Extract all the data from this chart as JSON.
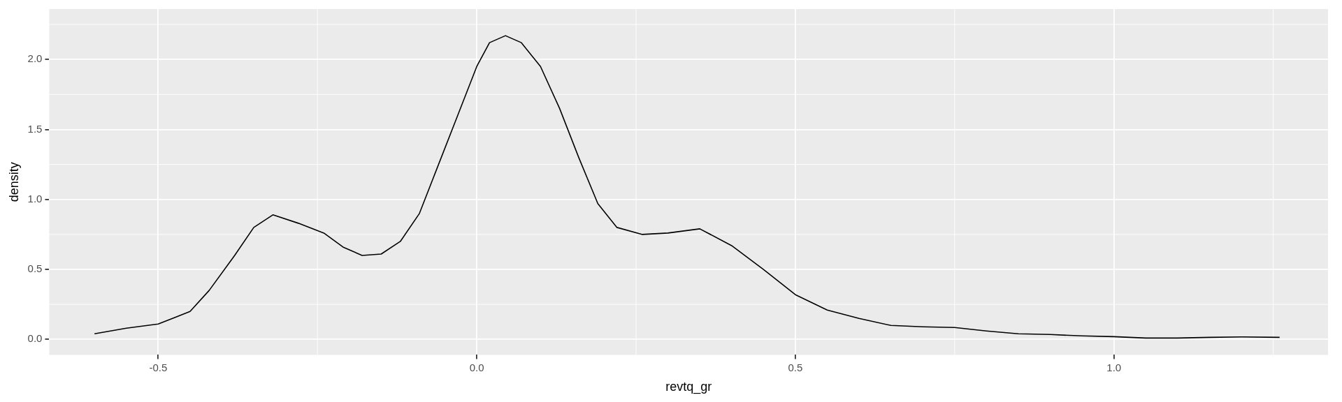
{
  "chart_data": {
    "type": "line",
    "xlabel": "revtq_gr",
    "ylabel": "density",
    "xlim": [
      -0.671,
      1.336
    ],
    "ylim": [
      -0.11,
      2.36
    ],
    "xticks": [
      {
        "value": -0.5,
        "label": "-0.5"
      },
      {
        "value": 0,
        "label": "0.0"
      },
      {
        "value": 0.5,
        "label": "0.5"
      },
      {
        "value": 1,
        "label": "1.0"
      }
    ],
    "yticks": [
      {
        "value": 0,
        "label": "0.0"
      },
      {
        "value": 0.5,
        "label": "0.5"
      },
      {
        "value": 1,
        "label": "1.0"
      },
      {
        "value": 1.5,
        "label": "1.5"
      },
      {
        "value": 2,
        "label": "2.0"
      }
    ],
    "grid": true,
    "marker": "none",
    "line_style": "solid",
    "series": [
      {
        "color": "#000000",
        "x": [
          -0.6,
          -0.55,
          -0.5,
          -0.45,
          -0.42,
          -0.38,
          -0.35,
          -0.32,
          -0.28,
          -0.24,
          -0.21,
          -0.18,
          -0.15,
          -0.12,
          -0.09,
          -0.06,
          -0.03,
          0.0,
          0.02,
          0.045,
          0.07,
          0.1,
          0.13,
          0.16,
          0.19,
          0.22,
          0.26,
          0.3,
          0.35,
          0.4,
          0.45,
          0.5,
          0.55,
          0.6,
          0.65,
          0.7,
          0.75,
          0.8,
          0.85,
          0.9,
          0.95,
          1.0,
          1.05,
          1.1,
          1.15,
          1.2,
          1.26
        ],
        "values": [
          0.04,
          0.08,
          0.11,
          0.2,
          0.35,
          0.6,
          0.8,
          0.89,
          0.83,
          0.76,
          0.66,
          0.6,
          0.61,
          0.7,
          0.9,
          1.25,
          1.6,
          1.95,
          2.12,
          2.17,
          2.12,
          1.95,
          1.65,
          1.3,
          0.97,
          0.8,
          0.75,
          0.76,
          0.79,
          0.67,
          0.5,
          0.32,
          0.21,
          0.15,
          0.1,
          0.09,
          0.085,
          0.06,
          0.04,
          0.035,
          0.025,
          0.02,
          0.01,
          0.01,
          0.015,
          0.018,
          0.015
        ]
      }
    ]
  }
}
